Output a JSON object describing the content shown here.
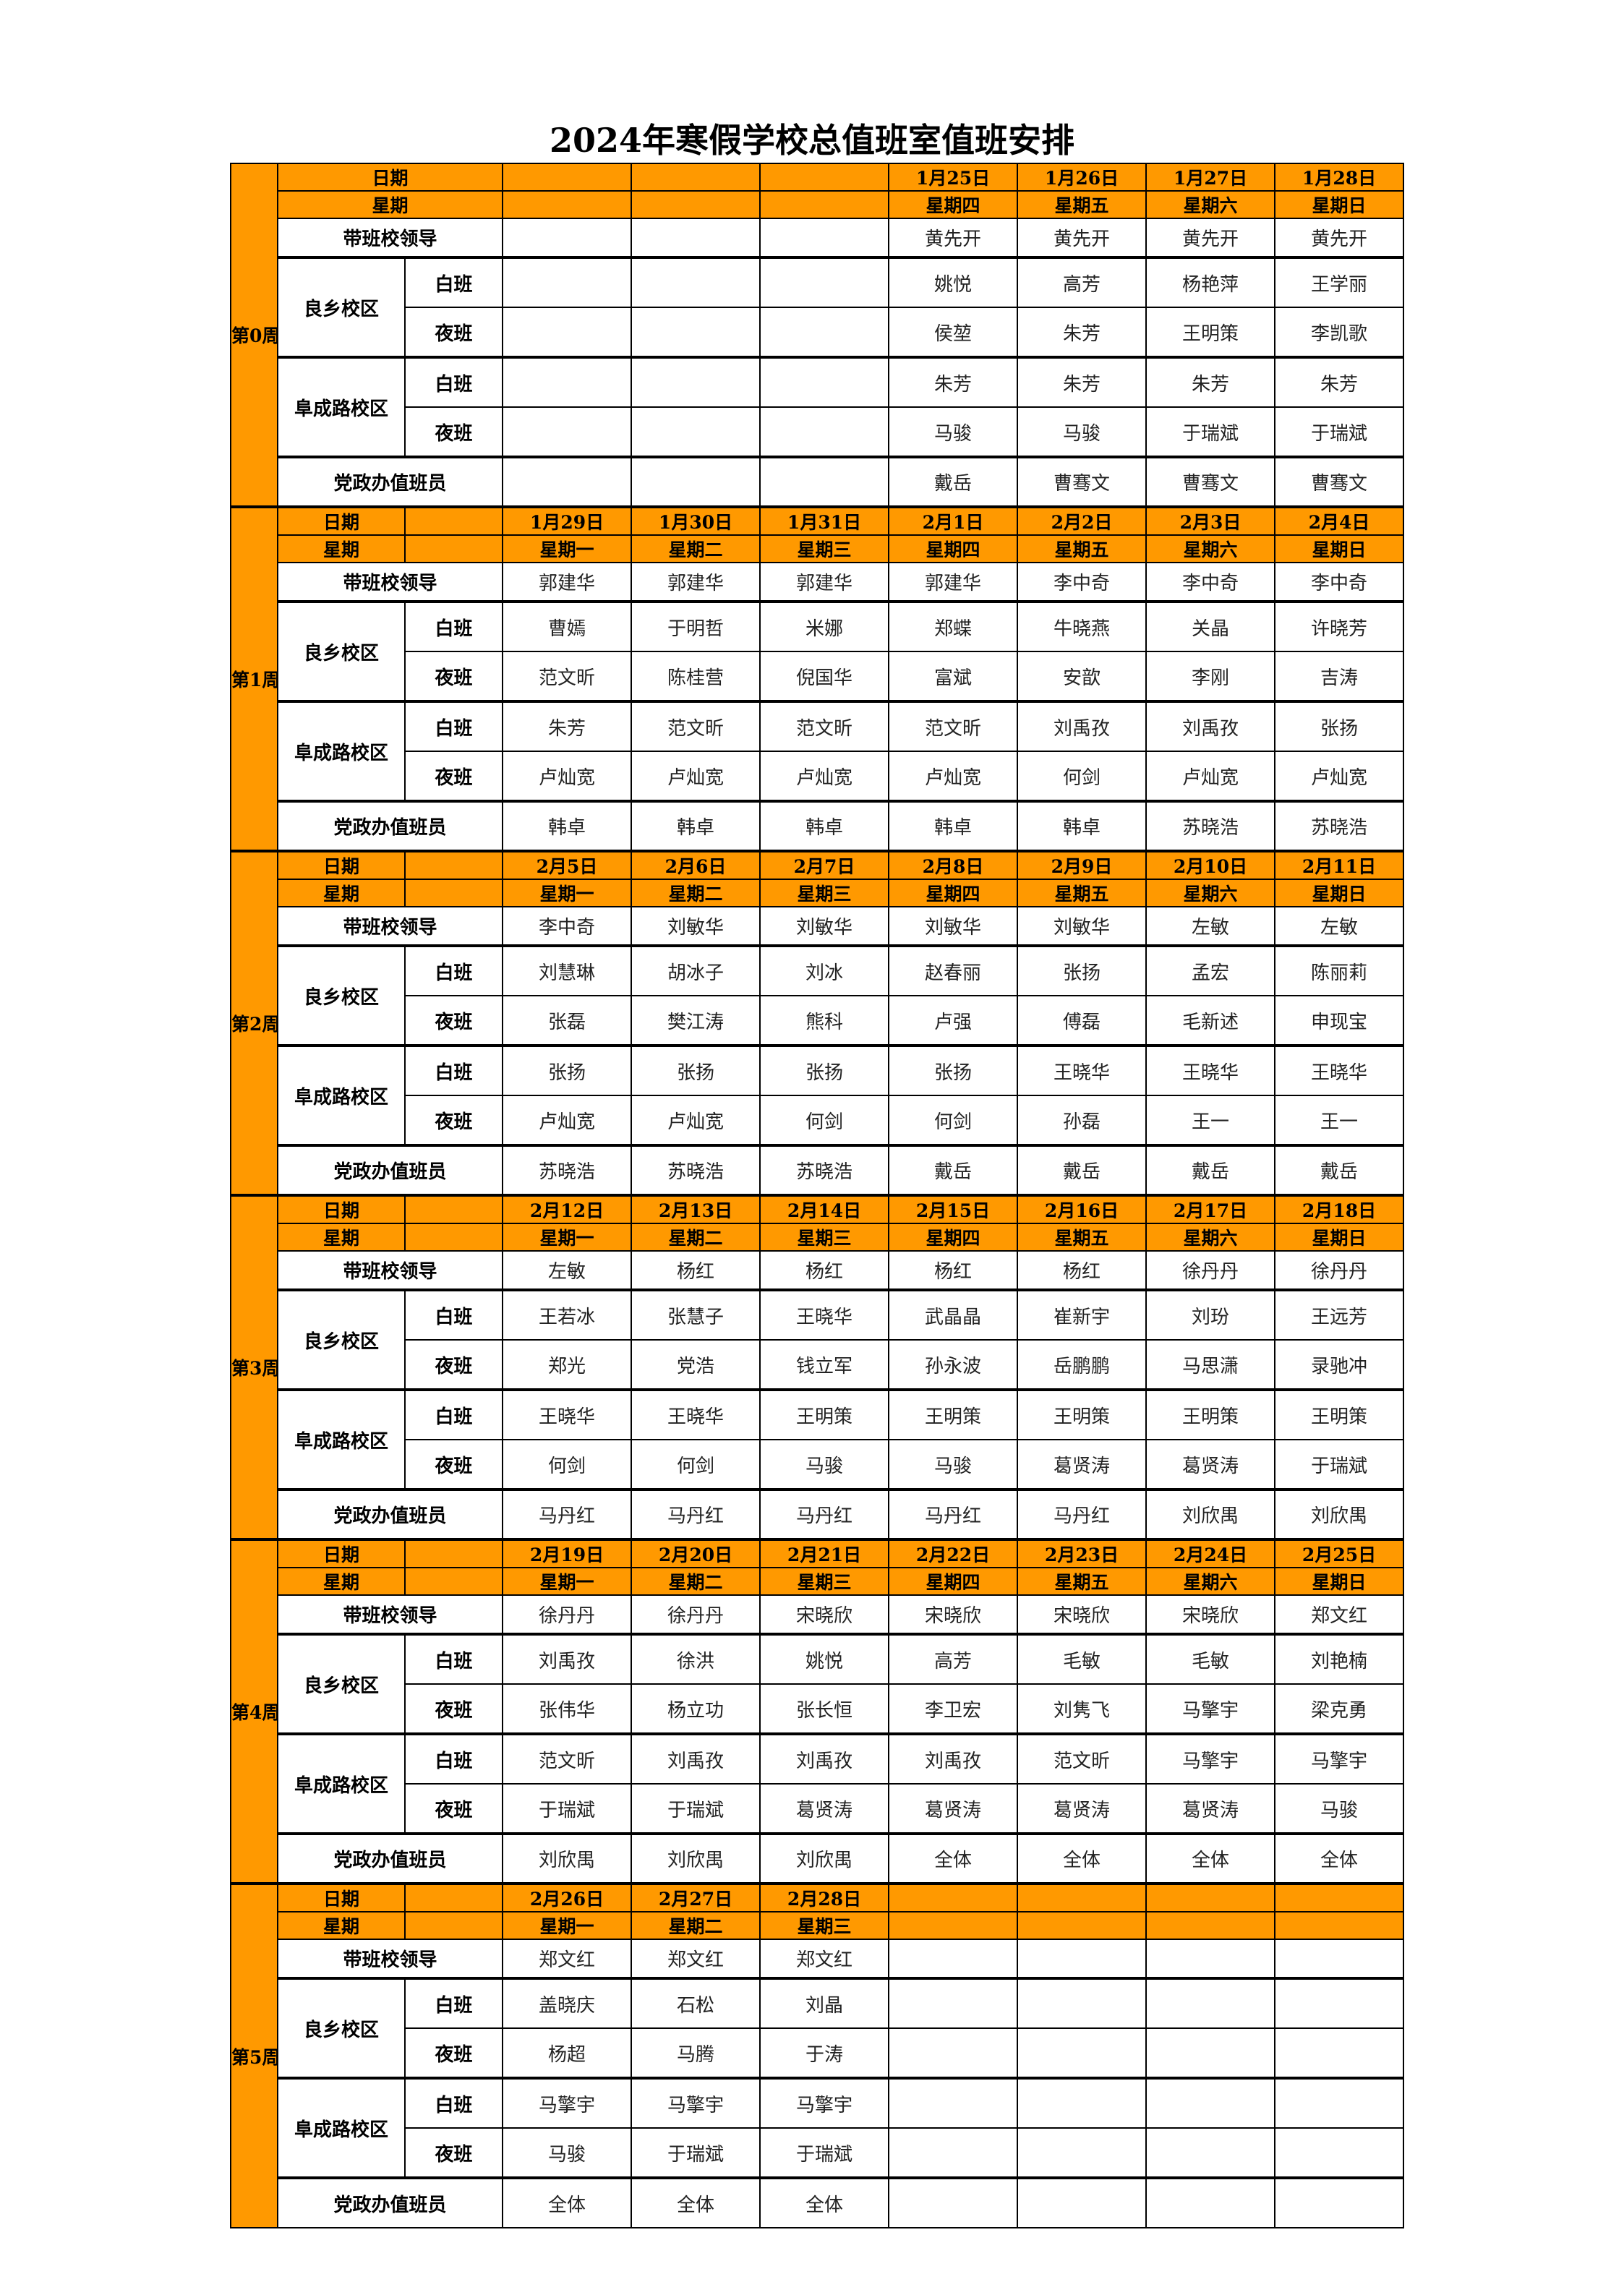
{
  "title": "2024年寒假学校总值班室值班安排",
  "colors": {
    "header_bg": "#ff9900",
    "border": "#000000"
  },
  "labels": {
    "date": "日期",
    "weekday": "星期",
    "leader": "带班校领导",
    "campus_liangxiang": "良乡校区",
    "campus_fucheng": "阜成路校区",
    "day_shift": "白班",
    "night_shift": "夜班",
    "party_office": "党政办值班员"
  },
  "weeks": [
    {
      "label": "第0周",
      "dates": [
        "",
        "",
        "",
        "1月25日",
        "1月26日",
        "1月27日",
        "1月28日"
      ],
      "weekdays": [
        "",
        "",
        "",
        "星期四",
        "星期五",
        "星期六",
        "星期日"
      ],
      "leader": [
        "",
        "",
        "",
        "黄先开",
        "黄先开",
        "黄先开",
        "黄先开"
      ],
      "liangxiang_day": [
        "",
        "",
        "",
        "姚悦",
        "高芳",
        "杨艳萍",
        "王学丽"
      ],
      "liangxiang_night": [
        "",
        "",
        "",
        "侯堃",
        "朱芳",
        "王明策",
        "李凯歌"
      ],
      "fucheng_day": [
        "",
        "",
        "",
        "朱芳",
        "朱芳",
        "朱芳",
        "朱芳"
      ],
      "fucheng_night": [
        "",
        "",
        "",
        "马骏",
        "马骏",
        "于瑞斌",
        "于瑞斌"
      ],
      "party": [
        "",
        "",
        "",
        "戴岳",
        "曹骞文",
        "曹骞文",
        "曹骞文"
      ]
    },
    {
      "label": "第1周",
      "dates": [
        "1月29日",
        "1月30日",
        "1月31日",
        "2月1日",
        "2月2日",
        "2月3日",
        "2月4日"
      ],
      "weekdays": [
        "星期一",
        "星期二",
        "星期三",
        "星期四",
        "星期五",
        "星期六",
        "星期日"
      ],
      "leader": [
        "郭建华",
        "郭建华",
        "郭建华",
        "郭建华",
        "李中奇",
        "李中奇",
        "李中奇"
      ],
      "liangxiang_day": [
        "曹嫣",
        "于明哲",
        "米娜",
        "郑蝶",
        "牛晓燕",
        "关晶",
        "许晓芳"
      ],
      "liangxiang_night": [
        "范文昕",
        "陈桂营",
        "倪国华",
        "富斌",
        "安歆",
        "李刚",
        "吉涛"
      ],
      "fucheng_day": [
        "朱芳",
        "范文昕",
        "范文昕",
        "范文昕",
        "刘禹孜",
        "刘禹孜",
        "张扬"
      ],
      "fucheng_night": [
        "卢灿宽",
        "卢灿宽",
        "卢灿宽",
        "卢灿宽",
        "何剑",
        "卢灿宽",
        "卢灿宽"
      ],
      "party": [
        "韩卓",
        "韩卓",
        "韩卓",
        "韩卓",
        "韩卓",
        "苏晓浩",
        "苏晓浩"
      ]
    },
    {
      "label": "第2周",
      "dates": [
        "2月5日",
        "2月6日",
        "2月7日",
        "2月8日",
        "2月9日",
        "2月10日",
        "2月11日"
      ],
      "weekdays": [
        "星期一",
        "星期二",
        "星期三",
        "星期四",
        "星期五",
        "星期六",
        "星期日"
      ],
      "leader": [
        "李中奇",
        "刘敏华",
        "刘敏华",
        "刘敏华",
        "刘敏华",
        "左敏",
        "左敏"
      ],
      "liangxiang_day": [
        "刘慧琳",
        "胡冰子",
        "刘冰",
        "赵春丽",
        "张扬",
        "孟宏",
        "陈丽莉"
      ],
      "liangxiang_night": [
        "张磊",
        "樊江涛",
        "熊科",
        "卢强",
        "傅磊",
        "毛新述",
        "申现宝"
      ],
      "fucheng_day": [
        "张扬",
        "张扬",
        "张扬",
        "张扬",
        "王晓华",
        "王晓华",
        "王晓华"
      ],
      "fucheng_night": [
        "卢灿宽",
        "卢灿宽",
        "何剑",
        "何剑",
        "孙磊",
        "王一",
        "王一"
      ],
      "party": [
        "苏晓浩",
        "苏晓浩",
        "苏晓浩",
        "戴岳",
        "戴岳",
        "戴岳",
        "戴岳"
      ]
    },
    {
      "label": "第3周",
      "dates": [
        "2月12日",
        "2月13日",
        "2月14日",
        "2月15日",
        "2月16日",
        "2月17日",
        "2月18日"
      ],
      "weekdays": [
        "星期一",
        "星期二",
        "星期三",
        "星期四",
        "星期五",
        "星期六",
        "星期日"
      ],
      "leader": [
        "左敏",
        "杨红",
        "杨红",
        "杨红",
        "杨红",
        "徐丹丹",
        "徐丹丹"
      ],
      "liangxiang_day": [
        "王若冰",
        "张慧子",
        "王晓华",
        "武晶晶",
        "崔新宇",
        "刘玢",
        "王远芳"
      ],
      "liangxiang_night": [
        "郑光",
        "党浩",
        "钱立军",
        "孙永波",
        "岳鹏鹏",
        "马思潇",
        "录驰冲"
      ],
      "fucheng_day": [
        "王晓华",
        "王晓华",
        "王明策",
        "王明策",
        "王明策",
        "王明策",
        "王明策"
      ],
      "fucheng_night": [
        "何剑",
        "何剑",
        "马骏",
        "马骏",
        "葛贤涛",
        "葛贤涛",
        "于瑞斌"
      ],
      "party": [
        "马丹红",
        "马丹红",
        "马丹红",
        "马丹红",
        "马丹红",
        "刘欣禺",
        "刘欣禺"
      ]
    },
    {
      "label": "第4周",
      "dates": [
        "2月19日",
        "2月20日",
        "2月21日",
        "2月22日",
        "2月23日",
        "2月24日",
        "2月25日"
      ],
      "weekdays": [
        "星期一",
        "星期二",
        "星期三",
        "星期四",
        "星期五",
        "星期六",
        "星期日"
      ],
      "leader": [
        "徐丹丹",
        "徐丹丹",
        "宋晓欣",
        "宋晓欣",
        "宋晓欣",
        "宋晓欣",
        "郑文红"
      ],
      "liangxiang_day": [
        "刘禹孜",
        "徐洪",
        "姚悦",
        "高芳",
        "毛敏",
        "毛敏",
        "刘艳楠"
      ],
      "liangxiang_night": [
        "张伟华",
        "杨立功",
        "张长恒",
        "李卫宏",
        "刘隽飞",
        "马擎宇",
        "梁克勇"
      ],
      "fucheng_day": [
        "范文昕",
        "刘禹孜",
        "刘禹孜",
        "刘禹孜",
        "范文昕",
        "马擎宇",
        "马擎宇"
      ],
      "fucheng_night": [
        "于瑞斌",
        "于瑞斌",
        "葛贤涛",
        "葛贤涛",
        "葛贤涛",
        "葛贤涛",
        "马骏"
      ],
      "party": [
        "刘欣禺",
        "刘欣禺",
        "刘欣禺",
        "全体",
        "全体",
        "全体",
        "全体"
      ]
    },
    {
      "label": "第5周",
      "dates": [
        "2月26日",
        "2月27日",
        "2月28日",
        "",
        "",
        "",
        ""
      ],
      "weekdays": [
        "星期一",
        "星期二",
        "星期三",
        "",
        "",
        "",
        ""
      ],
      "leader": [
        "郑文红",
        "郑文红",
        "郑文红",
        "",
        "",
        "",
        ""
      ],
      "liangxiang_day": [
        "盖晓庆",
        "石松",
        "刘晶",
        "",
        "",
        "",
        ""
      ],
      "liangxiang_night": [
        "杨超",
        "马腾",
        "于涛",
        "",
        "",
        "",
        ""
      ],
      "fucheng_day": [
        "马擎宇",
        "马擎宇",
        "马擎宇",
        "",
        "",
        "",
        ""
      ],
      "fucheng_night": [
        "马骏",
        "于瑞斌",
        "于瑞斌",
        "",
        "",
        "",
        ""
      ],
      "party": [
        "全体",
        "全体",
        "全体",
        "",
        "",
        "",
        ""
      ]
    }
  ]
}
